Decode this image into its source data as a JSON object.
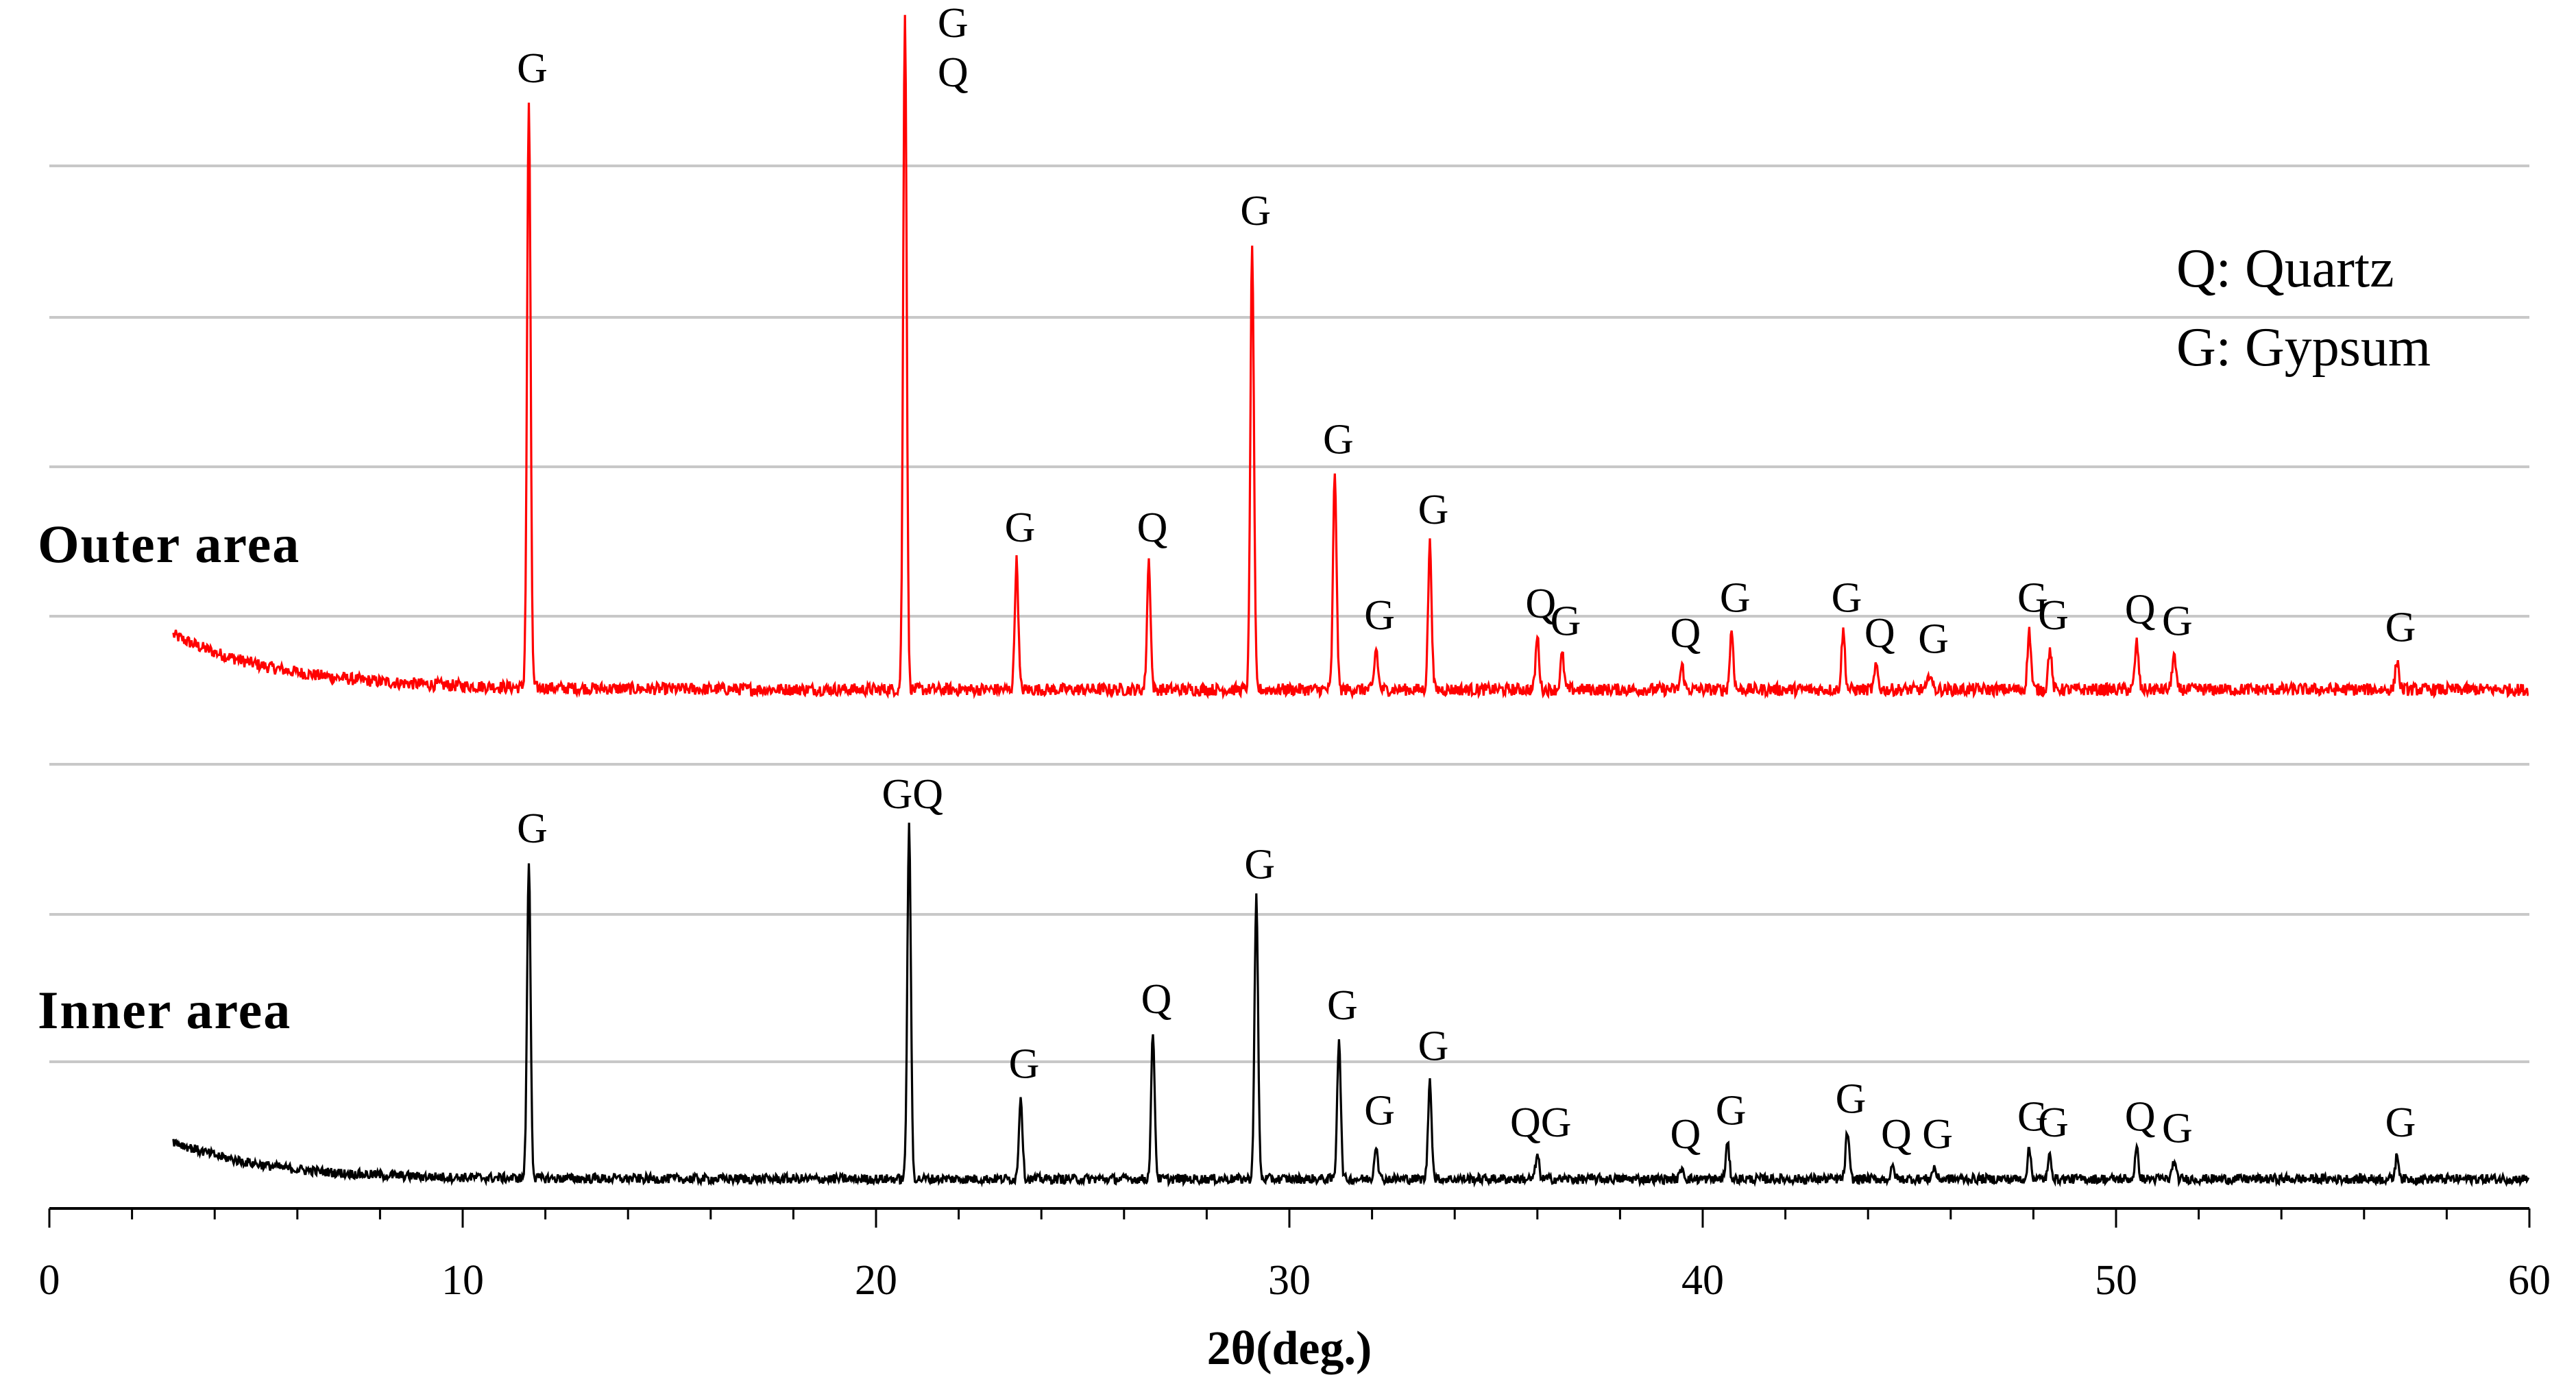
{
  "chart_data": {
    "type": "line",
    "xlabel": "2θ(deg.)",
    "xlim": [
      0,
      60
    ],
    "x_ticks": [
      "0",
      "10",
      "20",
      "30",
      "40",
      "50",
      "60"
    ],
    "grid": true,
    "legend": {
      "placement": "top-right",
      "entries": [
        "Q: Quartz",
        "G: Gypsum"
      ]
    },
    "series": [
      {
        "name": "Outer area",
        "color": "#ff0000",
        "peaks": [
          {
            "x": 11.6,
            "intensity": 1.0,
            "label": "G"
          },
          {
            "x": 20.7,
            "intensity": 1.16,
            "label": "G\nQ"
          },
          {
            "x": 23.4,
            "intensity": 0.22,
            "label": "G"
          },
          {
            "x": 26.6,
            "intensity": 0.22,
            "label": "Q"
          },
          {
            "x": 29.1,
            "intensity": 0.76,
            "label": "G"
          },
          {
            "x": 31.1,
            "intensity": 0.37,
            "label": "G"
          },
          {
            "x": 32.1,
            "intensity": 0.07,
            "label": "G"
          },
          {
            "x": 33.4,
            "intensity": 0.25,
            "label": "G"
          },
          {
            "x": 36.0,
            "intensity": 0.09,
            "label": "Q"
          },
          {
            "x": 36.6,
            "intensity": 0.06,
            "label": "G"
          },
          {
            "x": 39.5,
            "intensity": 0.04,
            "label": "Q"
          },
          {
            "x": 40.7,
            "intensity": 0.1,
            "label": "G"
          },
          {
            "x": 43.4,
            "intensity": 0.1,
            "label": "G"
          },
          {
            "x": 44.2,
            "intensity": 0.04,
            "label": "Q"
          },
          {
            "x": 45.5,
            "intensity": 0.03,
            "label": "G"
          },
          {
            "x": 47.9,
            "intensity": 0.1,
            "label": "G"
          },
          {
            "x": 48.4,
            "intensity": 0.07,
            "label": "G"
          },
          {
            "x": 50.5,
            "intensity": 0.08,
            "label": "Q"
          },
          {
            "x": 51.4,
            "intensity": 0.06,
            "label": "G"
          },
          {
            "x": 56.8,
            "intensity": 0.05,
            "label": "G"
          }
        ]
      },
      {
        "name": "Inner area",
        "color": "#000000",
        "peaks": [
          {
            "x": 11.6,
            "intensity": 0.54,
            "label": "G"
          },
          {
            "x": 20.8,
            "intensity": 0.6,
            "label": "GQ"
          },
          {
            "x": 23.5,
            "intensity": 0.14,
            "label": "G"
          },
          {
            "x": 26.7,
            "intensity": 0.25,
            "label": "Q"
          },
          {
            "x": 29.2,
            "intensity": 0.48,
            "label": "G"
          },
          {
            "x": 31.2,
            "intensity": 0.24,
            "label": "G"
          },
          {
            "x": 32.1,
            "intensity": 0.06,
            "label": "G"
          },
          {
            "x": 33.4,
            "intensity": 0.17,
            "label": "G"
          },
          {
            "x": 36.0,
            "intensity": 0.04,
            "label": "QG"
          },
          {
            "x": 39.5,
            "intensity": 0.02,
            "label": "Q"
          },
          {
            "x": 40.6,
            "intensity": 0.06,
            "label": "G"
          },
          {
            "x": 43.5,
            "intensity": 0.08,
            "label": "G"
          },
          {
            "x": 44.6,
            "intensity": 0.02,
            "label": "Q"
          },
          {
            "x": 45.6,
            "intensity": 0.02,
            "label": "G"
          },
          {
            "x": 47.9,
            "intensity": 0.05,
            "label": "G"
          },
          {
            "x": 48.4,
            "intensity": 0.04,
            "label": "G"
          },
          {
            "x": 50.5,
            "intensity": 0.05,
            "label": "Q"
          },
          {
            "x": 51.4,
            "intensity": 0.03,
            "label": "G"
          },
          {
            "x": 56.8,
            "intensity": 0.04,
            "label": "G"
          }
        ]
      }
    ]
  }
}
